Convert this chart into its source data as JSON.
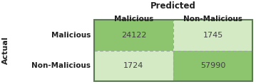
{
  "title": "Predicted",
  "ylabel": "Actual",
  "col_headers": [
    "Malicious",
    "Non-Malicious"
  ],
  "row_headers": [
    "Malicious",
    "Non-Malicious"
  ],
  "matrix": [
    [
      24122,
      1745
    ],
    [
      1724,
      57990
    ]
  ],
  "cell_colors_diag": "#8DC46E",
  "cell_colors_off": "#D4EAC4",
  "border_color": "#5A7A50",
  "text_color": "#404040",
  "header_color": "#202020",
  "bg_color": "#FFFFFF",
  "dashed_color": "#99AA99"
}
